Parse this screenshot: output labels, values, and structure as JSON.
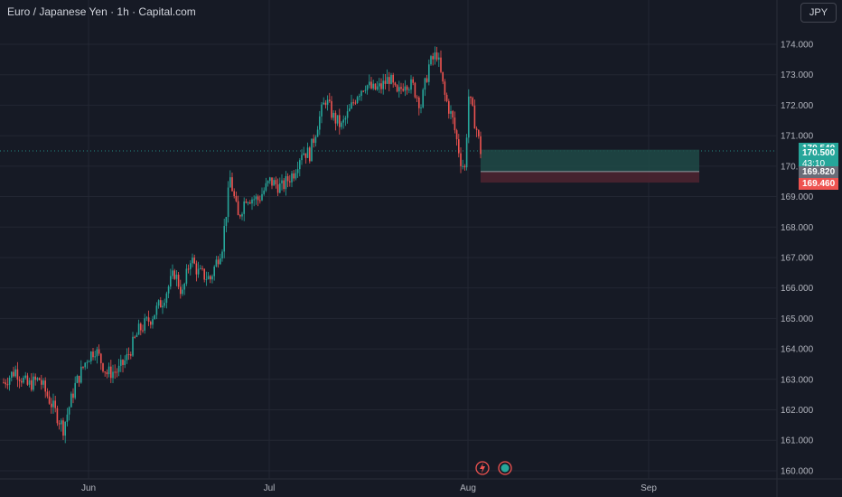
{
  "header": {
    "title": "Euro / Japanese Yen · 1h · Capital.com",
    "currency_label": "JPY"
  },
  "price_tags": {
    "ask": "170.540",
    "bid": "170.500",
    "countdown": "43:10",
    "entry": "169.820",
    "stop": "169.460"
  },
  "colors": {
    "background": "#161a25",
    "up": "#26a69a",
    "down": "#ef5350",
    "gray_tag": "#6a6d78",
    "target_zone": "#1e4a46",
    "stop_zone": "#4a2430"
  },
  "icons": [
    "flash-icon",
    "globe-icon"
  ],
  "chart_data": {
    "type": "candlestick",
    "symbol": "EURJPY",
    "timeframe": "1h",
    "y_ticks": [
      160,
      161,
      162,
      163,
      164,
      165,
      166,
      167,
      168,
      169,
      170,
      171,
      172,
      173,
      174
    ],
    "ylim": [
      159.9,
      175.0
    ],
    "x_ticks": [
      "Jun",
      "Jul",
      "Aug",
      "Sep"
    ],
    "grid": true,
    "price_path": [
      [
        0,
        162.9
      ],
      [
        3,
        163.3
      ],
      [
        6,
        162.8
      ],
      [
        9,
        163.0
      ],
      [
        12,
        162.2
      ],
      [
        15,
        161.4
      ],
      [
        18,
        162.8
      ],
      [
        21,
        163.7
      ],
      [
        23,
        164.0
      ],
      [
        26,
        163.2
      ],
      [
        29,
        163.3
      ],
      [
        31,
        163.7
      ],
      [
        34,
        164.6
      ],
      [
        37,
        165.0
      ],
      [
        40,
        165.6
      ],
      [
        43,
        166.5
      ],
      [
        45,
        165.8
      ],
      [
        47,
        167.0
      ],
      [
        49,
        166.5
      ],
      [
        52,
        166.3
      ],
      [
        55,
        167.4
      ],
      [
        57,
        169.6
      ],
      [
        59,
        168.3
      ],
      [
        61,
        169.0
      ],
      [
        64,
        168.9
      ],
      [
        67,
        169.5
      ],
      [
        70,
        169.3
      ],
      [
        73,
        169.8
      ],
      [
        75,
        170.5
      ],
      [
        77,
        170.4
      ],
      [
        79,
        171.4
      ],
      [
        81,
        172.2
      ],
      [
        83,
        171.6
      ],
      [
        85,
        171.3
      ],
      [
        87,
        171.8
      ],
      [
        89,
        172.4
      ],
      [
        91,
        172.7
      ],
      [
        93,
        172.5
      ],
      [
        95,
        172.6
      ],
      [
        97,
        172.9
      ],
      [
        99,
        172.3
      ],
      [
        101,
        172.8
      ],
      [
        103,
        172.6
      ],
      [
        105,
        172.0
      ],
      [
        107,
        173.3
      ],
      [
        109,
        173.7
      ],
      [
        111,
        172.3
      ],
      [
        113,
        171.5
      ],
      [
        115,
        170.2
      ],
      [
        116,
        169.9
      ],
      [
        117,
        172.3
      ],
      [
        119,
        171.2
      ],
      [
        120,
        170.5
      ]
    ],
    "position": {
      "entry": 169.82,
      "target": 170.54,
      "stop": 169.46,
      "start_index": 120,
      "end_index": 175
    },
    "last_price": 170.5
  }
}
